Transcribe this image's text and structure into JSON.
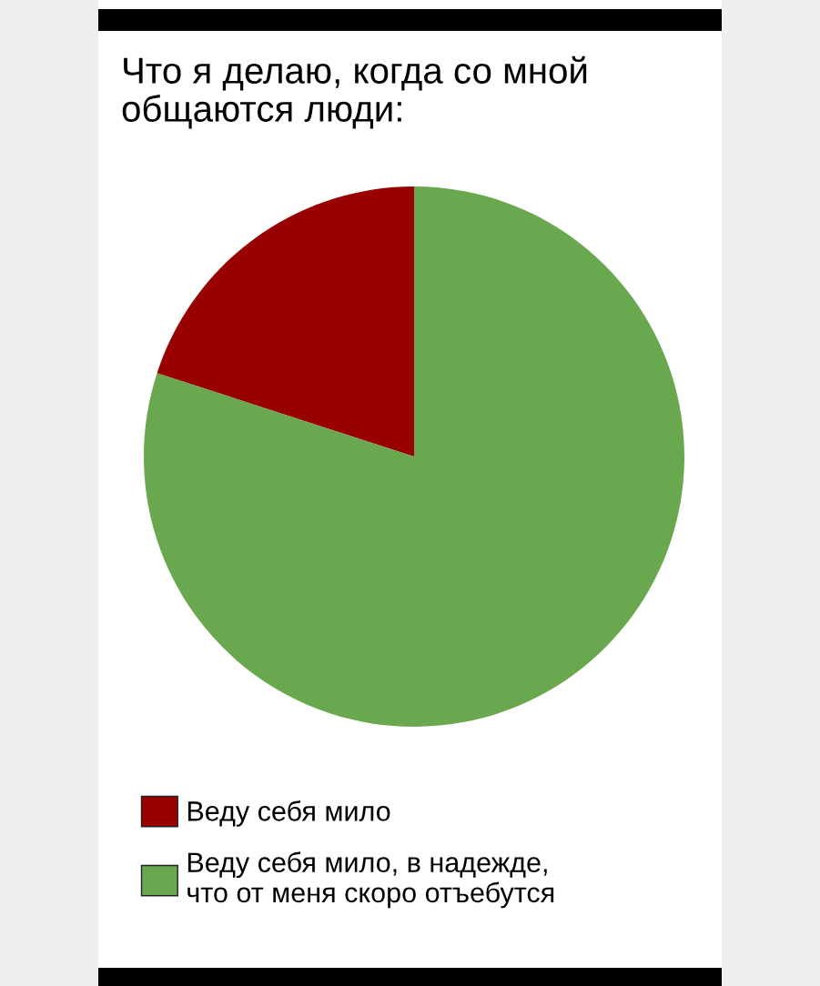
{
  "chart_data": {
    "type": "pie",
    "title": "Что я делаю, когда со мной\nобщаются люди:",
    "categories": [
      "Веду себя мило",
      "Веду себя мило, в надежде,\nчто от меня скоро отъебутся"
    ],
    "values": [
      20,
      80
    ],
    "colors": [
      "#990000",
      "#6aa84f"
    ],
    "legend": "bottom"
  }
}
